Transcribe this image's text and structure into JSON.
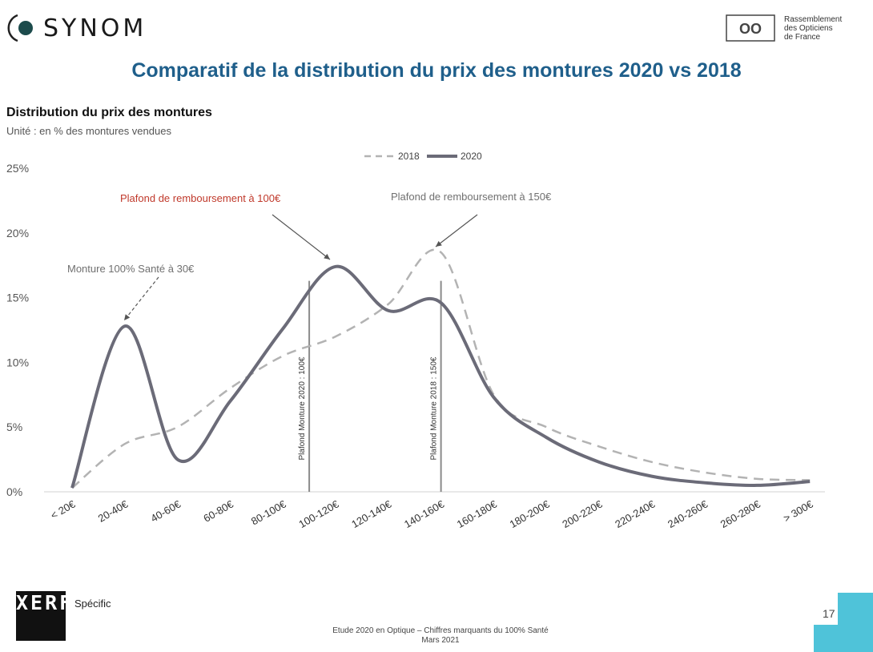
{
  "header": {
    "brand": "SYNOM",
    "partner_lines": [
      "Rassemblement",
      "des Opticiens",
      "de France"
    ],
    "partner_logo_text": "OO"
  },
  "title": "Comparatif de la distribution du prix des montures 2020 vs 2018",
  "subtitle": "Distribution du prix des montures",
  "unit_label": "Unité : en % des montures vendues",
  "chart_data": {
    "type": "line",
    "categories": [
      "< 20€",
      "20-40€",
      "40-60€",
      "60-80€",
      "80-100€",
      "100-120€",
      "120-140€",
      "140-160€",
      "160-180€",
      "180-200€",
      "200-220€",
      "220-240€",
      "240-260€",
      "260-280€",
      "> 300€"
    ],
    "series": [
      {
        "name": "2018",
        "style": "dashed",
        "values": [
          0.3,
          3.7,
          5.0,
          8.0,
          10.5,
          12.0,
          14.5,
          18.5,
          7.5,
          5.0,
          3.5,
          2.3,
          1.5,
          1.0,
          0.9
        ]
      },
      {
        "name": "2020",
        "style": "solid",
        "values": [
          0.3,
          12.8,
          2.5,
          7.0,
          12.6,
          17.4,
          14.0,
          14.6,
          7.3,
          4.2,
          2.3,
          1.2,
          0.7,
          0.5,
          0.8
        ]
      }
    ],
    "ylim": [
      0,
      25
    ],
    "yticks": [
      "0%",
      "5%",
      "10%",
      "15%",
      "20%",
      "25%"
    ],
    "legend_position": "top",
    "colors": {
      "2018": "#b3b3b3",
      "2020": "#6b6b78",
      "annot_red": "#c0392b",
      "annot_gray": "#707070"
    },
    "annotations": [
      {
        "text": "Monture 100% Santé à 30€",
        "color": "#707070"
      },
      {
        "text": "Plafond de remboursement à 100€",
        "color": "#c0392b"
      },
      {
        "text": "Plafond de remboursement à 150€",
        "color": "#707070"
      }
    ],
    "reference_lines": [
      {
        "label": "Plafond Monture 2020 : 100€",
        "x_value": 100
      },
      {
        "label": "Plafond Monture 2018 : 150€",
        "x_value": 150
      }
    ]
  },
  "footer": {
    "logo": "XERFI",
    "logo_sub": "Spécific",
    "line1": "Etude 2020 en Optique – Chiffres marquants du 100% Santé",
    "line2": "Mars 2021",
    "page": "17"
  }
}
